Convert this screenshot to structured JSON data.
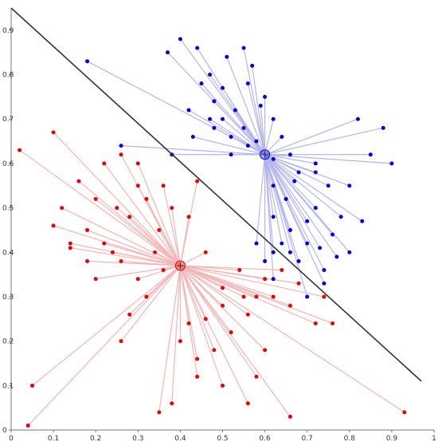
{
  "chart_data": {
    "type": "scatter",
    "title": "",
    "xlabel": "",
    "ylabel": "",
    "xlim": [
      0,
      1
    ],
    "ylim": [
      0,
      0.95
    ],
    "grid": false,
    "x_ticks": [
      "0",
      "0.1",
      "0.2",
      "0.3",
      "0.4",
      "0.5",
      "0.6",
      "0.7",
      "0.8",
      "0.9",
      "1"
    ],
    "y_ticks": [
      "0",
      "0.1",
      "0.2",
      "0.3",
      "0.4",
      "0.5",
      "0.6",
      "0.7",
      "0.8",
      "0.9"
    ],
    "decision_boundary": {
      "from": [
        0,
        0.95
      ],
      "to": [
        0.97,
        0.11
      ],
      "color": "#333333"
    },
    "series": [
      {
        "color": "#0000ee",
        "line_color": "#b4b4f2",
        "centroid": [
          0.6,
          0.62
        ],
        "points": [
          [
            0.56,
            0.78
          ],
          [
            0.48,
            0.74
          ],
          [
            0.47,
            0.7
          ],
          [
            0.53,
            0.72
          ],
          [
            0.55,
            0.68
          ],
          [
            0.58,
            0.65
          ],
          [
            0.52,
            0.66
          ],
          [
            0.5,
            0.7
          ],
          [
            0.45,
            0.78
          ],
          [
            0.42,
            0.72
          ],
          [
            0.37,
            0.85
          ],
          [
            0.18,
            0.83
          ],
          [
            0.26,
            0.64
          ],
          [
            0.48,
            0.68
          ],
          [
            0.52,
            0.62
          ],
          [
            0.56,
            0.64
          ],
          [
            0.62,
            0.55
          ],
          [
            0.65,
            0.52
          ],
          [
            0.66,
            0.45
          ],
          [
            0.62,
            0.4
          ],
          [
            0.66,
            0.4
          ],
          [
            0.68,
            0.38
          ],
          [
            0.7,
            0.42
          ],
          [
            0.72,
            0.5
          ],
          [
            0.75,
            0.55
          ],
          [
            0.78,
            0.48
          ],
          [
            0.8,
            0.4
          ],
          [
            0.85,
            0.62
          ],
          [
            0.88,
            0.68
          ],
          [
            0.82,
            0.7
          ],
          [
            0.72,
            0.6
          ],
          [
            0.68,
            0.58
          ],
          [
            0.9,
            0.6
          ],
          [
            0.8,
            0.55
          ],
          [
            0.62,
            0.48
          ],
          [
            0.58,
            0.42
          ],
          [
            0.6,
            0.38
          ],
          [
            0.62,
            0.34
          ],
          [
            0.64,
            0.42
          ],
          [
            0.76,
            0.44
          ],
          [
            0.74,
            0.36
          ],
          [
            0.72,
            0.58
          ],
          [
            0.66,
            0.62
          ],
          [
            0.64,
            0.66
          ],
          [
            0.62,
            0.7
          ],
          [
            0.6,
            0.75
          ],
          [
            0.57,
            0.82
          ],
          [
            0.55,
            0.86
          ],
          [
            0.51,
            0.84
          ],
          [
            0.44,
            0.86
          ],
          [
            0.4,
            0.88
          ],
          [
            0.47,
            0.8
          ],
          [
            0.5,
            0.77
          ],
          [
            0.59,
            0.73
          ],
          [
            0.62,
            0.61
          ],
          [
            0.67,
            0.56
          ],
          [
            0.7,
            0.47
          ],
          [
            0.73,
            0.41
          ],
          [
            0.77,
            0.39
          ],
          [
            0.74,
            0.33
          ],
          [
            0.7,
            0.3
          ],
          [
            0.83,
            0.47
          ],
          [
            0.43,
            0.66
          ],
          [
            0.38,
            0.62
          ]
        ]
      },
      {
        "color": "#ee0000",
        "line_color": "#f6b4b4",
        "centroid": [
          0.4,
          0.37
        ],
        "points": [
          [
            0.35,
            0.45
          ],
          [
            0.3,
            0.55
          ],
          [
            0.25,
            0.5
          ],
          [
            0.2,
            0.52
          ],
          [
            0.18,
            0.45
          ],
          [
            0.22,
            0.42
          ],
          [
            0.28,
            0.48
          ],
          [
            0.32,
            0.52
          ],
          [
            0.36,
            0.55
          ],
          [
            0.38,
            0.5
          ],
          [
            0.3,
            0.6
          ],
          [
            0.26,
            0.62
          ],
          [
            0.22,
            0.6
          ],
          [
            0.16,
            0.56
          ],
          [
            0.12,
            0.5
          ],
          [
            0.1,
            0.46
          ],
          [
            0.14,
            0.41
          ],
          [
            0.24,
            0.4
          ],
          [
            0.34,
            0.4
          ],
          [
            0.36,
            0.36
          ],
          [
            0.3,
            0.34
          ],
          [
            0.26,
            0.38
          ],
          [
            0.2,
            0.34
          ],
          [
            0.44,
            0.56
          ],
          [
            0.42,
            0.48
          ],
          [
            0.46,
            0.4
          ],
          [
            0.5,
            0.32
          ],
          [
            0.55,
            0.3
          ],
          [
            0.6,
            0.34
          ],
          [
            0.64,
            0.36
          ],
          [
            0.62,
            0.3
          ],
          [
            0.56,
            0.26
          ],
          [
            0.52,
            0.22
          ],
          [
            0.48,
            0.18
          ],
          [
            0.44,
            0.16
          ],
          [
            0.4,
            0.2
          ],
          [
            0.42,
            0.24
          ],
          [
            0.46,
            0.25
          ],
          [
            0.5,
            0.28
          ],
          [
            0.54,
            0.36
          ],
          [
            0.58,
            0.3
          ],
          [
            0.66,
            0.28
          ],
          [
            0.68,
            0.33
          ],
          [
            0.72,
            0.24
          ],
          [
            0.74,
            0.3
          ],
          [
            0.6,
            0.18
          ],
          [
            0.58,
            0.12
          ],
          [
            0.56,
            0.06
          ],
          [
            0.5,
            0.1
          ],
          [
            0.44,
            0.12
          ],
          [
            0.38,
            0.06
          ],
          [
            0.35,
            0.04
          ],
          [
            0.05,
            0.1
          ],
          [
            0.04,
            0.01
          ],
          [
            0.26,
            0.2
          ],
          [
            0.14,
            0.42
          ],
          [
            0.18,
            0.38
          ],
          [
            0.28,
            0.26
          ],
          [
            0.32,
            0.3
          ],
          [
            0.66,
            0.03
          ],
          [
            0.93,
            0.04
          ],
          [
            0.76,
            0.24
          ],
          [
            0.02,
            0.63
          ],
          [
            0.1,
            0.67
          ]
        ]
      }
    ]
  }
}
